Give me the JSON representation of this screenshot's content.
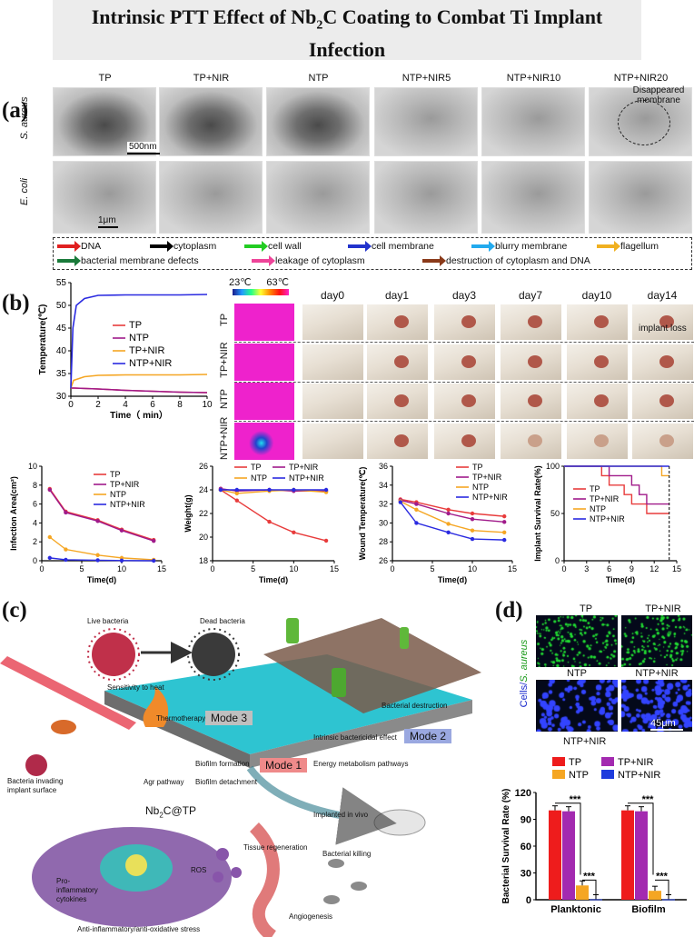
{
  "title": {
    "line1": "Intrinsic PTT Effect of Nb",
    "sub": "2",
    "line1b": "C Coating to Combat Ti Implant",
    "line2": "Infection"
  },
  "panels": {
    "a": "(a)",
    "b": "(b)",
    "c": "(c)",
    "d": "(d)"
  },
  "panel_a": {
    "columns": [
      "TP",
      "TP+NIR",
      "NTP",
      "NTP+NIR5",
      "NTP+NIR10",
      "NTP+NIR20"
    ],
    "row_labels": [
      "S. aureus",
      "E. coli"
    ],
    "annotation": "Disappeared membrane",
    "scale_top": "500nm",
    "scale_bottom": "1μm",
    "legend": [
      {
        "label": "DNA",
        "color": "#e02020"
      },
      {
        "label": "cytoplasm",
        "color": "#000000"
      },
      {
        "label": "cell wall",
        "color": "#22cc22"
      },
      {
        "label": "cell membrane",
        "color": "#2233cc"
      },
      {
        "label": "blurry membrane",
        "color": "#22aaee"
      },
      {
        "label": "flagellum",
        "color": "#f0b020"
      },
      {
        "label": "bacterial membrane defects",
        "color": "#1a7a3a"
      },
      {
        "label": "leakage of cytoplasm",
        "color": "#ee4499"
      },
      {
        "label": "destruction of cytoplasm and DNA",
        "color": "#8a3a1a"
      }
    ]
  },
  "panel_b": {
    "temp_scale_min": "23℃",
    "temp_scale_max": "63℃",
    "day_labels": [
      "day0",
      "day1",
      "day3",
      "day7",
      "day10",
      "day14"
    ],
    "row_labels": [
      "TP",
      "TP+NIR",
      "NTP",
      "NTP+NIR"
    ],
    "implant_loss": "implant loss"
  },
  "chart_data": [
    {
      "type": "line",
      "id": "temperature",
      "xlabel": "Time（ min）",
      "ylabel": "Temperature(℃)",
      "xlim": [
        0,
        10
      ],
      "ylim": [
        30,
        55
      ],
      "xticks": [
        0,
        2,
        4,
        6,
        8,
        10
      ],
      "yticks": [
        30,
        35,
        40,
        45,
        50,
        55
      ],
      "legend_position": "center-right",
      "series": [
        {
          "name": "TP",
          "color": "#e83c3c",
          "x": [
            0,
            0.25,
            2,
            4,
            6,
            8,
            10
          ],
          "y": [
            31.8,
            31.8,
            31.6,
            31.3,
            31.1,
            30.9,
            30.8
          ]
        },
        {
          "name": "NTP",
          "color": "#a01a8a",
          "x": [
            0,
            0.25,
            2,
            4,
            6,
            8,
            10
          ],
          "y": [
            31.8,
            31.8,
            31.6,
            31.3,
            31.1,
            30.9,
            30.8
          ]
        },
        {
          "name": "TP+NIR",
          "color": "#f5a623",
          "x": [
            0,
            0.2,
            1,
            2,
            4,
            6,
            8,
            10
          ],
          "y": [
            31.8,
            33.5,
            34.3,
            34.6,
            34.7,
            34.7,
            34.7,
            34.8
          ]
        },
        {
          "name": "NTP+NIR",
          "color": "#2a2ae0",
          "x": [
            0,
            0.15,
            0.4,
            1,
            2,
            4,
            6,
            8,
            10
          ],
          "y": [
            31.8,
            45,
            50,
            51.5,
            52.2,
            52.3,
            52.3,
            52.3,
            52.4
          ]
        }
      ]
    },
    {
      "type": "line",
      "id": "infection_area",
      "xlabel": "Time(d)",
      "ylabel": "Infection Area(cm²)",
      "xlim": [
        0,
        15
      ],
      "ylim": [
        0,
        10
      ],
      "xticks": [
        0,
        5,
        10,
        15
      ],
      "yticks": [
        0,
        2,
        4,
        6,
        8,
        10
      ],
      "legend_position": "top-right",
      "series": [
        {
          "name": "TP",
          "color": "#e83c3c",
          "x": [
            1,
            3,
            7,
            10,
            14
          ],
          "y": [
            7.6,
            5.2,
            4.3,
            3.3,
            2.2
          ]
        },
        {
          "name": "TP+NIR",
          "color": "#a01a8a",
          "x": [
            1,
            3,
            7,
            10,
            14
          ],
          "y": [
            7.5,
            5.1,
            4.2,
            3.2,
            2.1
          ]
        },
        {
          "name": "NTP",
          "color": "#f5a623",
          "x": [
            1,
            3,
            7,
            10,
            14
          ],
          "y": [
            2.5,
            1.2,
            0.6,
            0.3,
            0.1
          ]
        },
        {
          "name": "NTP+NIR",
          "color": "#2a2ae0",
          "x": [
            1,
            3,
            7,
            10,
            14
          ],
          "y": [
            0.3,
            0.1,
            0.05,
            0.02,
            0.0
          ]
        }
      ]
    },
    {
      "type": "line",
      "id": "weight",
      "xlabel": "Time(d)",
      "ylabel": "Weight(g)",
      "xlim": [
        0,
        15
      ],
      "ylim": [
        18,
        26
      ],
      "xticks": [
        0,
        5,
        10,
        15
      ],
      "yticks": [
        18,
        20,
        22,
        24,
        26
      ],
      "legend_position": "top",
      "series": [
        {
          "name": "TP",
          "color": "#e83c3c",
          "x": [
            1,
            3,
            7,
            10,
            14
          ],
          "y": [
            24.0,
            23.1,
            21.3,
            20.4,
            19.7
          ]
        },
        {
          "name": "TP+NIR",
          "color": "#a01a8a",
          "x": [
            1,
            3,
            7,
            10,
            14
          ],
          "y": [
            24.1,
            23.9,
            24.0,
            23.9,
            23.9
          ]
        },
        {
          "name": "NTP",
          "color": "#f5a623",
          "x": [
            1,
            3,
            7,
            10,
            14
          ],
          "y": [
            24.0,
            23.7,
            23.9,
            24.0,
            23.8
          ]
        },
        {
          "name": "NTP+NIR",
          "color": "#2a2ae0",
          "x": [
            1,
            3,
            7,
            10,
            14
          ],
          "y": [
            24.0,
            24.0,
            24.0,
            24.0,
            24.0
          ]
        }
      ]
    },
    {
      "type": "line",
      "id": "wound_temperature",
      "xlabel": "Time(d)",
      "ylabel": "Wound Temperature(℃)",
      "xlim": [
        0,
        15
      ],
      "ylim": [
        26,
        36
      ],
      "xticks": [
        0,
        5,
        10,
        15
      ],
      "yticks": [
        26,
        28,
        30,
        32,
        34,
        36
      ],
      "legend_position": "top-right",
      "series": [
        {
          "name": "TP",
          "color": "#e83c3c",
          "x": [
            1,
            3,
            7,
            10,
            14
          ],
          "y": [
            32.5,
            32.2,
            31.4,
            31.0,
            30.7
          ]
        },
        {
          "name": "TP+NIR",
          "color": "#a01a8a",
          "x": [
            1,
            3,
            7,
            10,
            14
          ],
          "y": [
            32.4,
            32.0,
            31.0,
            30.4,
            30.1
          ]
        },
        {
          "name": "NTP",
          "color": "#f5a623",
          "x": [
            1,
            3,
            7,
            10,
            14
          ],
          "y": [
            32.3,
            31.4,
            29.9,
            29.2,
            29.0
          ]
        },
        {
          "name": "NTP+NIR",
          "color": "#2a2ae0",
          "x": [
            1,
            3,
            7,
            10,
            14
          ],
          "y": [
            32.2,
            30.0,
            29.0,
            28.3,
            28.2
          ]
        }
      ]
    },
    {
      "type": "step",
      "id": "implant_survival",
      "xlabel": "Time(d)",
      "ylabel": "Implant Survival Rate(%)",
      "xlim": [
        0,
        15
      ],
      "ylim": [
        0,
        100
      ],
      "xticks": [
        0,
        3,
        6,
        9,
        12,
        15
      ],
      "yticks": [
        0,
        50,
        100
      ],
      "legend_position": "center",
      "series": [
        {
          "name": "TP",
          "color": "#e83c3c",
          "x": [
            0,
            5,
            6,
            8,
            9,
            11,
            14
          ],
          "y": [
            100,
            90,
            80,
            70,
            60,
            50,
            50
          ]
        },
        {
          "name": "TP+NIR",
          "color": "#a01a8a",
          "x": [
            0,
            6,
            9,
            10,
            11,
            14
          ],
          "y": [
            100,
            90,
            80,
            70,
            60,
            60
          ]
        },
        {
          "name": "NTP",
          "color": "#f5a623",
          "x": [
            0,
            13,
            14
          ],
          "y": [
            100,
            90,
            90
          ]
        },
        {
          "name": "NTP+NIR",
          "color": "#2a2ae0",
          "x": [
            0,
            14
          ],
          "y": [
            100,
            100
          ]
        }
      ]
    },
    {
      "type": "bar",
      "id": "bacterial_survival",
      "ylabel": "Bacterial Survival Rate (%)",
      "ylim": [
        0,
        120
      ],
      "yticks": [
        0,
        30,
        60,
        90,
        120
      ],
      "categories": [
        "Planktonic",
        "Biofilm"
      ],
      "legend_position": "top",
      "significance": "***",
      "series": [
        {
          "name": "TP",
          "color": "#ee1c1c",
          "values": [
            100,
            100
          ]
        },
        {
          "name": "TP+NIR",
          "color": "#a32ab0",
          "values": [
            99,
            99
          ]
        },
        {
          "name": "NTP",
          "color": "#f5a623",
          "values": [
            16,
            10
          ]
        },
        {
          "name": "NTP+NIR",
          "color": "#1f3cdd",
          "values": [
            0.5,
            0.5
          ]
        }
      ]
    }
  ],
  "panel_c": {
    "live_bacteria": "Live bacteria",
    "dead_bacteria": "Dead bacteria",
    "sensitivity": "Sensitivity to heat",
    "thermotherapy": "Thermotherapy",
    "mode3": "Mode 3",
    "mode2": "Mode 2",
    "mode1": "Mode 1",
    "bacterial_destruction": "Bacterial destruction",
    "intrinsic": "Intrinsic bactericidal effect",
    "energy": "Energy metabolism pathways",
    "biofilm_formation": "Biofilm formation",
    "agr": "Agr pathway",
    "biofilm_detachment": "Biofilm detachment",
    "invading": "Bacteria invading implant surface",
    "substrate_prefix": "Nb",
    "substrate_sub": "2",
    "substrate_suffix": "C@TP",
    "implanted": "Implanted in vivo",
    "tissue": "Tissue regeneration",
    "ros": "ROS",
    "pro_inflam": "Pro-inflammatory cytokines",
    "killing": "Bacterial killing",
    "angiogenesis": "Angiogenesis",
    "anti": "Anti-inflammatory/anti-oxidative stress"
  },
  "panel_d": {
    "labels": [
      "TP",
      "TP+NIR",
      "NTP",
      "NTP+NIR"
    ],
    "row_label_prefix": "Cells/",
    "row_label_species": "S. aureus",
    "scale": "45μm",
    "bottom_label": "NTP+NIR"
  }
}
